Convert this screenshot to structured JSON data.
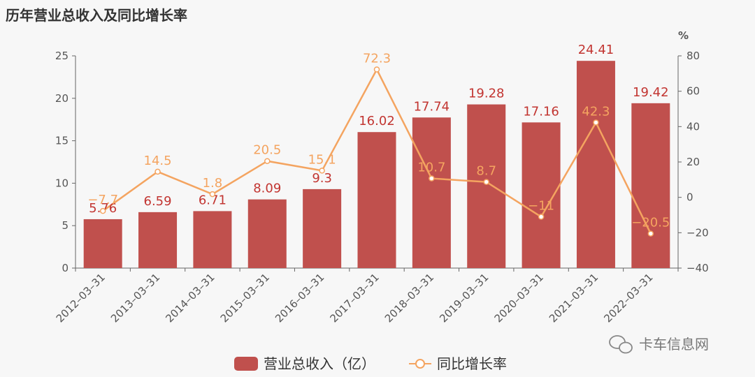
{
  "chart_data": {
    "type": "bar",
    "title": "历年营业总收入及同比增长率",
    "categories": [
      "2012-03-31",
      "2013-03-31",
      "2014-03-31",
      "2015-03-31",
      "2016-03-31",
      "2017-03-31",
      "2018-03-31",
      "2019-03-31",
      "2020-03-31",
      "2021-03-31",
      "2022-03-31"
    ],
    "series": [
      {
        "name": "营业总收入（亿）",
        "type": "bar",
        "axis": "left",
        "color": "#c0504d",
        "values": [
          5.76,
          6.59,
          6.71,
          8.09,
          9.3,
          16.02,
          17.74,
          19.28,
          17.16,
          24.41,
          19.42
        ]
      },
      {
        "name": "同比增长率",
        "type": "line",
        "axis": "right",
        "color": "#f4a460",
        "values": [
          -7.7,
          14.5,
          1.8,
          20.5,
          15.1,
          72.3,
          10.7,
          8.7,
          -11,
          42.3,
          -20.5
        ]
      }
    ],
    "y_left": {
      "range": [
        0,
        25
      ],
      "ticks": [
        0,
        5,
        10,
        15,
        20,
        25
      ],
      "label": ""
    },
    "y_right": {
      "range": [
        -40,
        80
      ],
      "ticks": [
        -40,
        -20,
        0,
        20,
        40,
        60,
        80
      ],
      "unit": "%"
    },
    "grid": false,
    "legend_position": "bottom-center"
  },
  "watermark": {
    "text": "卡车信息网",
    "icon": "wechat-icon"
  }
}
